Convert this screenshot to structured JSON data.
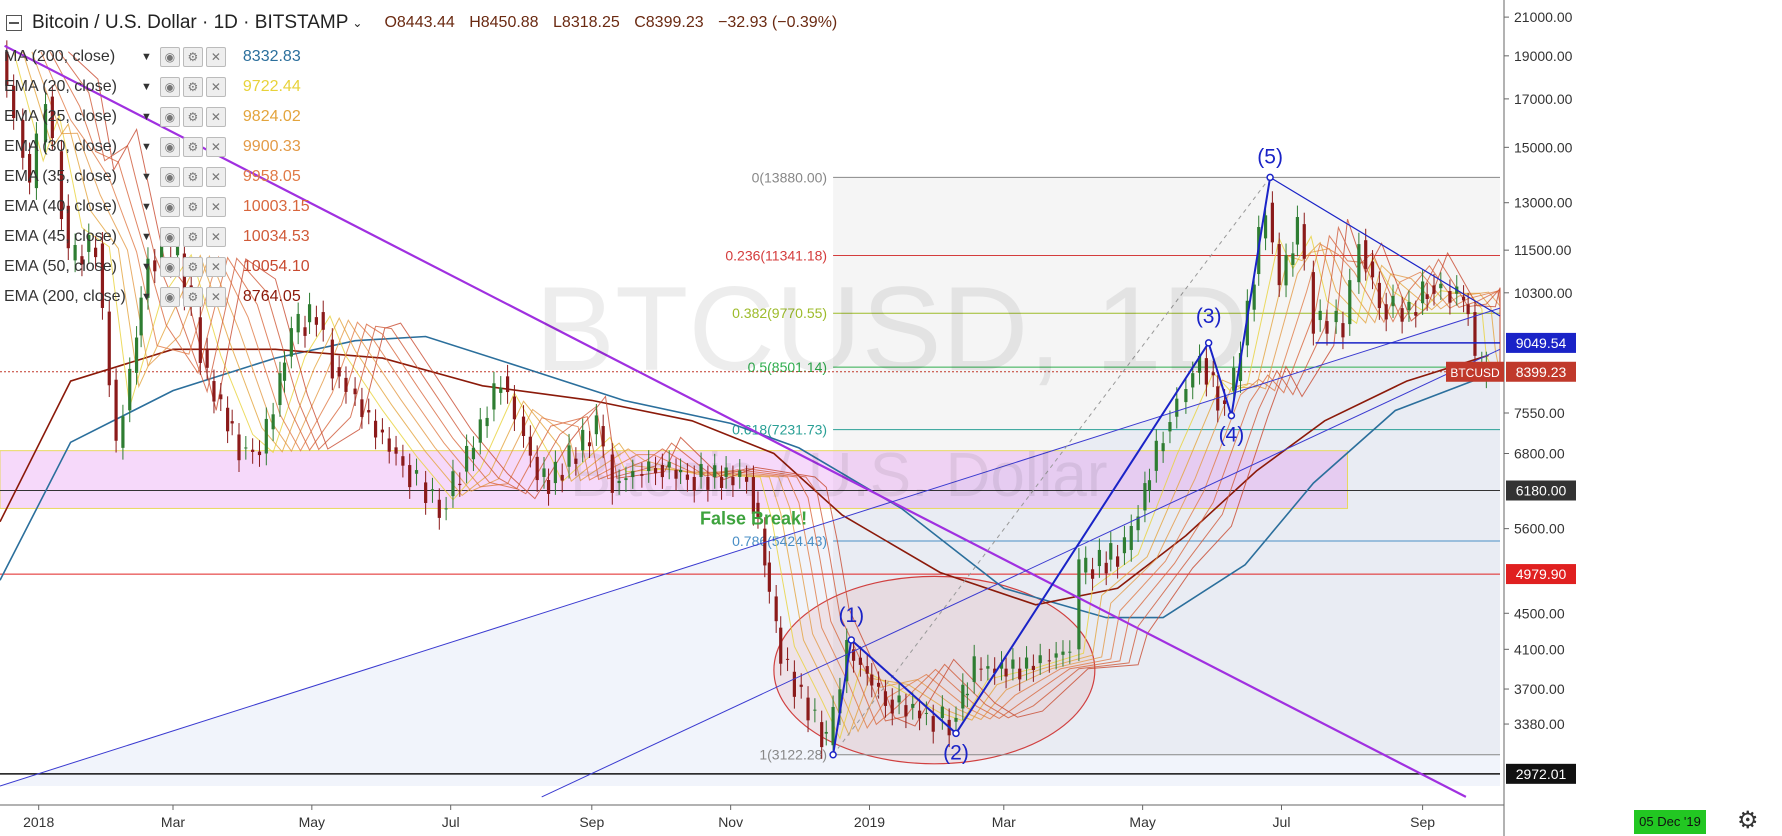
{
  "header": {
    "collapse_icon": "collapse-square-icon",
    "symbol": "Bitcoin / U.S. Dollar · 1D · BITSTAMP",
    "open": "O8443.44",
    "high": "H8450.88",
    "low": "L8318.25",
    "close": "C8399.23",
    "change": "−32.93 (−0.39%)"
  },
  "indicators": [
    {
      "name": "MA (200, close)",
      "value": "8332.83",
      "color": "#2b6f9c"
    },
    {
      "name": "EMA (20, close)",
      "value": "9722.44",
      "color": "#e8d23a"
    },
    {
      "name": "EMA (25, close)",
      "value": "9824.02",
      "color": "#e3a43c"
    },
    {
      "name": "EMA (30, close)",
      "value": "9900.33",
      "color": "#e39a46"
    },
    {
      "name": "EMA (35, close)",
      "value": "9958.05",
      "color": "#e07a46"
    },
    {
      "name": "EMA (40, close)",
      "value": "10003.15",
      "color": "#d8663c"
    },
    {
      "name": "EMA (45, close)",
      "value": "10034.53",
      "color": "#d05a38"
    },
    {
      "name": "EMA (50, close)",
      "value": "10054.10",
      "color": "#c84a30"
    },
    {
      "name": "EMA (200, close)",
      "value": "8764.05",
      "color": "#8b1a0a"
    }
  ],
  "watermark": {
    "title": "BTCUSD, 1D",
    "subtitle": "Bitcoin / U.S. Dollar"
  },
  "annotations": {
    "false_break": "False Break!",
    "waves": [
      "(1)",
      "(2)",
      "(3)",
      "(4)",
      "(5)"
    ]
  },
  "fib_levels": [
    {
      "label": "0(13880.00)",
      "price": 13880,
      "color": "#888888"
    },
    {
      "label": "0.236(11341.18)",
      "price": 11341.18,
      "color": "#d43c3c"
    },
    {
      "label": "0.382(9770.55)",
      "price": 9770.55,
      "color": "#9dbb2a"
    },
    {
      "label": "0.5(8501.14)",
      "price": 8501.14,
      "color": "#2fae4e"
    },
    {
      "label": "0.618(7231.73)",
      "price": 7231.73,
      "color": "#2aa096"
    },
    {
      "label": "0.786(5424.43)",
      "price": 5424.43,
      "color": "#4a8fc6"
    },
    {
      "label": "1(3122.28)",
      "price": 3122.28,
      "color": "#888888"
    }
  ],
  "price_tags": [
    {
      "text": "9049.54",
      "price": 9049.54,
      "bg": "#1a23c7",
      "fg": "#ffffff"
    },
    {
      "text": "BTCUSD",
      "price": 8399.23,
      "bg": "#c0392b",
      "fg": "#ffffff",
      "kind": "symbol"
    },
    {
      "text": "8399.23",
      "price": 8399.23,
      "bg": "#c0392b",
      "fg": "#ffffff"
    },
    {
      "text": "6180.00",
      "price": 6180,
      "bg": "#333333",
      "fg": "#ffffff"
    },
    {
      "text": "4979.90",
      "price": 4979.9,
      "bg": "#e02020",
      "fg": "#ffffff"
    },
    {
      "text": "2972.01",
      "price": 2972.01,
      "bg": "#111111",
      "fg": "#ffffff"
    }
  ],
  "bottom": {
    "current_date": "05 Dec '19",
    "settings_icon": "gear-icon"
  },
  "chart_data": {
    "type": "candlestick",
    "scale": "log",
    "y_ticks": [
      21000,
      19000,
      17000,
      15000,
      13000,
      11500,
      10300,
      9049.54,
      8399.23,
      7550,
      6800,
      6180,
      5600,
      4979.9,
      4500,
      4100,
      3700,
      3380,
      2972.01
    ],
    "y_tick_labels": [
      "21000.00",
      "19000.00",
      "17000.00",
      "15000.00",
      "13000.00",
      "11500.00",
      "10300.00",
      "7550.00",
      "6800.00",
      "5600.00",
      "4500.00",
      "4100.00",
      "3700.00",
      "3380.00"
    ],
    "ylim": [
      2880,
      21500
    ],
    "x_range": [
      "2017-12-15",
      "2019-10-05"
    ],
    "x_ticks": [
      {
        "label": "2018",
        "date": "2018-01-01"
      },
      {
        "label": "Mar",
        "date": "2018-03-01"
      },
      {
        "label": "May",
        "date": "2018-05-01"
      },
      {
        "label": "Jul",
        "date": "2018-07-01"
      },
      {
        "label": "Sep",
        "date": "2018-09-01"
      },
      {
        "label": "Nov",
        "date": "2018-11-01"
      },
      {
        "label": "2019",
        "date": "2019-01-01"
      },
      {
        "label": "Mar",
        "date": "2019-03-01"
      },
      {
        "label": "May",
        "date": "2019-05-01"
      },
      {
        "label": "Jul",
        "date": "2019-07-01"
      },
      {
        "label": "Sep",
        "date": "2019-09-01"
      }
    ],
    "price_path": [
      [
        "2017-12-17",
        19200
      ],
      [
        "2017-12-30",
        13500
      ],
      [
        "2018-01-06",
        17100
      ],
      [
        "2018-01-16",
        11200
      ],
      [
        "2018-01-28",
        11700
      ],
      [
        "2018-02-06",
        6900
      ],
      [
        "2018-02-20",
        11200
      ],
      [
        "2018-03-05",
        11400
      ],
      [
        "2018-03-18",
        8200
      ],
      [
        "2018-04-01",
        6900
      ],
      [
        "2018-04-10",
        6800
      ],
      [
        "2018-04-24",
        9300
      ],
      [
        "2018-05-05",
        9800
      ],
      [
        "2018-05-12",
        8500
      ],
      [
        "2018-05-28",
        7400
      ],
      [
        "2018-06-12",
        6600
      ],
      [
        "2018-06-28",
        5900
      ],
      [
        "2018-07-10",
        6700
      ],
      [
        "2018-07-25",
        8300
      ],
      [
        "2018-08-10",
        6400
      ],
      [
        "2018-08-15",
        6300
      ],
      [
        "2018-09-05",
        7300
      ],
      [
        "2018-09-12",
        6300
      ],
      [
        "2018-10-01",
        6600
      ],
      [
        "2018-10-15",
        6400
      ],
      [
        "2018-11-10",
        6400
      ],
      [
        "2018-11-15",
        5600
      ],
      [
        "2018-11-20",
        4700
      ],
      [
        "2018-11-25",
        4000
      ],
      [
        "2018-12-07",
        3500
      ],
      [
        "2018-12-15",
        3200
      ],
      [
        "2018-12-24",
        4100
      ],
      [
        "2019-01-10",
        3600
      ],
      [
        "2019-01-28",
        3450
      ],
      [
        "2019-02-07",
        3400
      ],
      [
        "2019-02-18",
        3900
      ],
      [
        "2019-03-10",
        3900
      ],
      [
        "2019-04-01",
        4100
      ],
      [
        "2019-04-05",
        5000
      ],
      [
        "2019-04-25",
        5300
      ],
      [
        "2019-05-12",
        7200
      ],
      [
        "2019-05-28",
        8700
      ],
      [
        "2019-06-05",
        7800
      ],
      [
        "2019-06-12",
        8200
      ],
      [
        "2019-06-26",
        13000
      ],
      [
        "2019-07-02",
        10500
      ],
      [
        "2019-07-10",
        12300
      ],
      [
        "2019-07-17",
        9600
      ],
      [
        "2019-07-30",
        9500
      ],
      [
        "2019-08-06",
        11800
      ],
      [
        "2019-08-15",
        10000
      ],
      [
        "2019-08-28",
        9800
      ],
      [
        "2019-09-05",
        10500
      ],
      [
        "2019-09-18",
        10200
      ],
      [
        "2019-09-23",
        9800
      ],
      [
        "2019-09-25",
        8500
      ],
      [
        "2019-09-29",
        8300
      ],
      [
        "2019-09-30",
        8399
      ]
    ],
    "sma200": [
      [
        "2017-12-15",
        4900
      ],
      [
        "2018-01-15",
        7000
      ],
      [
        "2018-03-01",
        8000
      ],
      [
        "2018-04-15",
        8700
      ],
      [
        "2018-05-20",
        9100
      ],
      [
        "2018-06-20",
        9200
      ],
      [
        "2018-08-01",
        8500
      ],
      [
        "2018-09-15",
        7800
      ],
      [
        "2018-11-01",
        7350
      ],
      [
        "2018-12-01",
        6900
      ],
      [
        "2019-01-15",
        5900
      ],
      [
        "2019-03-01",
        4800
      ],
      [
        "2019-04-15",
        4450
      ],
      [
        "2019-05-10",
        4450
      ],
      [
        "2019-06-15",
        5100
      ],
      [
        "2019-07-15",
        6300
      ],
      [
        "2019-08-20",
        7600
      ],
      [
        "2019-09-30",
        8332
      ]
    ],
    "ema200": [
      [
        "2017-12-15",
        5700
      ],
      [
        "2018-01-15",
        8200
      ],
      [
        "2018-03-01",
        8900
      ],
      [
        "2018-04-15",
        8900
      ],
      [
        "2018-06-01",
        8700
      ],
      [
        "2018-07-15",
        8100
      ],
      [
        "2018-09-01",
        7800
      ],
      [
        "2018-10-15",
        7400
      ],
      [
        "2018-11-20",
        6800
      ],
      [
        "2018-12-20",
        5800
      ],
      [
        "2019-02-01",
        5000
      ],
      [
        "2019-03-15",
        4600
      ],
      [
        "2019-04-20",
        4800
      ],
      [
        "2019-05-20",
        5500
      ],
      [
        "2019-06-20",
        6500
      ],
      [
        "2019-07-20",
        7400
      ],
      [
        "2019-08-25",
        8200
      ],
      [
        "2019-09-30",
        8764
      ]
    ],
    "wave_points": [
      [
        "2018-12-16",
        3122
      ],
      [
        "2018-12-24",
        4200
      ],
      [
        "2019-02-08",
        3300
      ],
      [
        "2019-05-30",
        9050
      ],
      [
        "2019-06-09",
        7500
      ],
      [
        "2019-06-26",
        13880
      ]
    ],
    "descending_trendline": [
      [
        "2017-12-17",
        19500
      ],
      [
        "2019-09-20",
        2800
      ]
    ],
    "channel_lower": [
      [
        "2017-12-15",
        2880
      ],
      [
        "2019-10-05",
        9900
      ]
    ],
    "channel_upper_line": [
      [
        "2018-08-10",
        2800
      ],
      [
        "2019-10-05",
        8900
      ]
    ],
    "triangle_top": [
      [
        "2019-06-26",
        13880
      ],
      [
        "2019-10-05",
        9700
      ]
    ],
    "support_9049": [
      [
        "2019-07-16",
        9049.54
      ],
      [
        "2019-10-05",
        9049.54
      ]
    ],
    "range_box": {
      "from": "2017-12-15",
      "to": "2019-07-30",
      "low": 5900,
      "high": 6850
    },
    "fib_box": {
      "from": "2018-12-16",
      "to": "2019-10-05"
    },
    "ellipse": {
      "from": "2018-11-20",
      "to": "2019-04-10",
      "low": 3050,
      "high": 4950
    }
  }
}
